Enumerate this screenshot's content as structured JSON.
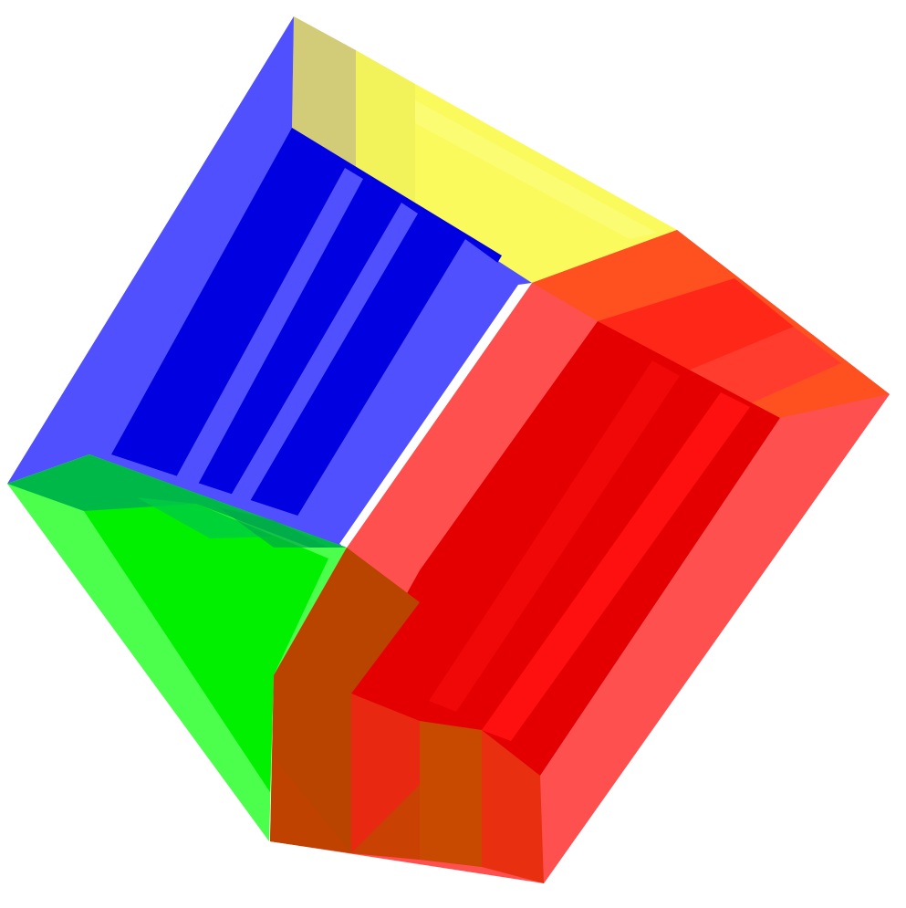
{
  "scene": {
    "description_visible_text": "",
    "colors": {
      "background": "#ffffff",
      "blue_light": "#5050ff",
      "blue_dark": "#0000e0",
      "yellow": "#ffff50",
      "yellow_olive": "#d4ce76",
      "green_light": "#4cff4c",
      "green_bright": "#00f000",
      "green_dark": "#00b040",
      "red_light": "#ff5050",
      "red_dark": "#e40000",
      "red_bright": "#ff1010",
      "orange": "#ff5020",
      "brown": "#b84400"
    }
  }
}
